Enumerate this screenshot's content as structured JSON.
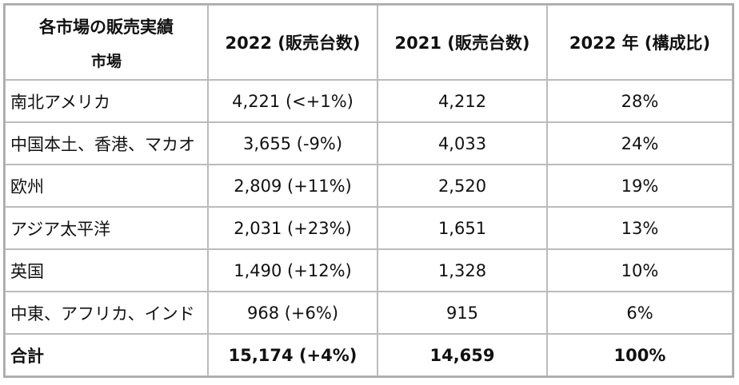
{
  "table": {
    "header": {
      "title": "各市場の販売実績",
      "subtitle": "市場",
      "columns": [
        "2022 (販売台数)",
        "2021 (販売台数)",
        "2022 年 (構成比)"
      ]
    },
    "rows": [
      [
        "南北アメリカ",
        "4,221 (<+1%)",
        "4,212",
        "28%"
      ],
      [
        "中国本土、香港、マカオ",
        "3,655 (-9%)",
        "4,033",
        "24%"
      ],
      [
        "欧州",
        "2,809 (+11%)",
        "2,520",
        "19%"
      ],
      [
        "アジア太平洋",
        "2,031 (+23%)",
        "1,651",
        "13%"
      ],
      [
        "英国",
        "1,490 (+12%)",
        "1,328",
        "10%"
      ],
      [
        "中東、アフリカ、インド",
        "968 (+6%)",
        "915",
        "6%"
      ]
    ],
    "total": [
      "合計",
      "15,174 (+4%)",
      "14,659",
      "100%"
    ]
  }
}
